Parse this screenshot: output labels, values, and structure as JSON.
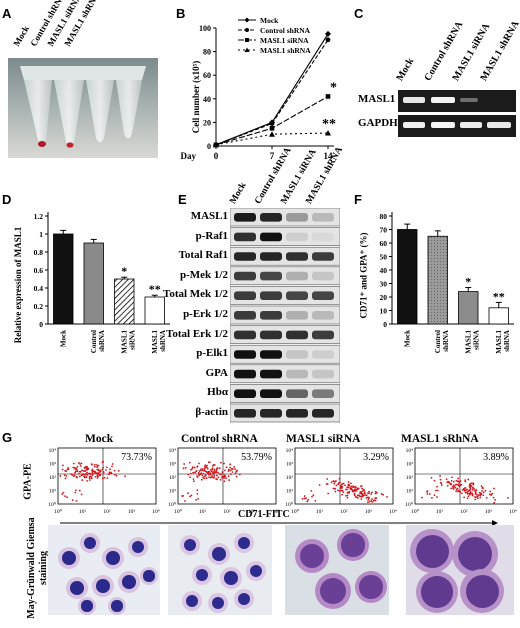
{
  "panels": [
    "A",
    "B",
    "C",
    "D",
    "E",
    "F",
    "G"
  ],
  "panel_a": {
    "lanes": [
      "Mock",
      "Control shRNA",
      "MASL1 siRNA",
      "MASL1 shRNA"
    ]
  },
  "panel_b": {
    "legend": [
      "Mock",
      "Control shRNA",
      "MASL1 siRNA",
      "MASL1 shRNA"
    ],
    "ylabel": "Cell number (x10⁵)",
    "xprefix": "Day",
    "xticks": [
      "0",
      "7",
      "14"
    ],
    "yticks": [
      "0",
      "20",
      "40",
      "60",
      "80",
      "100"
    ],
    "sig_single": "*",
    "sig_double": "**"
  },
  "panel_c": {
    "lanes": [
      "Mock",
      "Control shRNA",
      "MASL1 siRNA",
      "MASL1 shRNA"
    ],
    "rows": [
      "MASL1",
      "GAPDH"
    ]
  },
  "panel_d": {
    "ylabel": "Relative expression of MASL1",
    "yticks": [
      "0",
      "0.2",
      "0.4",
      "0.6",
      "0.8",
      "1",
      "1.2"
    ],
    "categories": [
      "Mock",
      "Control shRNA",
      "MASL1 siRNA",
      "MASL1 shRNA"
    ],
    "sig": [
      "",
      "",
      "*",
      "**"
    ]
  },
  "panel_e": {
    "lanes": [
      "Mock",
      "Control shRNA",
      "MASL1 siRNA",
      "MASL1 shRNA"
    ],
    "rows": [
      "MASL1",
      "p-Raf1",
      "Total Raf1",
      "p-Mek 1/2",
      "Total Mek 1/2",
      "p-Erk 1/2",
      "Total Erk 1/2",
      "p-Elk1",
      "GPA",
      "Hbα",
      "β-actin"
    ]
  },
  "panel_f": {
    "ylabel": "CD71⁺ and GPA⁺ (%)",
    "yticks": [
      "0",
      "10",
      "20",
      "30",
      "40",
      "50",
      "60",
      "70",
      "80"
    ],
    "categories": [
      "Mock",
      "Control shRNA",
      "MASL1 siRNA",
      "MASL1 shRNA"
    ],
    "sig": [
      "",
      "",
      "*",
      "**"
    ]
  },
  "panel_g": {
    "titles": [
      "Mock",
      "Control shRNA",
      "MASL1 siRNA",
      "MASL1 sRhNA"
    ],
    "percents": [
      "73.73%",
      "53.79%",
      "3.29%",
      "3.89%"
    ],
    "ylabel": "GPA-PE",
    "xlabel": "CD71-FITC",
    "ticks": [
      "10⁰",
      "10¹",
      "10²",
      "10³",
      "10⁴"
    ],
    "stain_label": "May-Grünwald Giemsa staining"
  },
  "chart_data": [
    {
      "type": "line",
      "panel": "B",
      "ylabel": "Cell number (x10⁵)",
      "xlabel": "Day",
      "x": [
        0,
        7,
        14
      ],
      "ylim": [
        0,
        100
      ],
      "series": [
        {
          "name": "Mock",
          "values": [
            1,
            20,
            95
          ]
        },
        {
          "name": "Control shRNA",
          "values": [
            1,
            19,
            90
          ]
        },
        {
          "name": "MASL1 siRNA",
          "values": [
            1,
            15,
            42
          ]
        },
        {
          "name": "MASL1 shRNA",
          "values": [
            1,
            10,
            11
          ]
        }
      ],
      "annotations": [
        "*",
        "**"
      ]
    },
    {
      "type": "bar",
      "panel": "D",
      "ylabel": "Relative expression of MASL1",
      "categories": [
        "Mock",
        "Control shRNA",
        "MASL1 siRNA",
        "MASL1 shRNA"
      ],
      "values": [
        1.0,
        0.9,
        0.5,
        0.3
      ],
      "errors": [
        0.04,
        0.04,
        0.02,
        0.02
      ],
      "ylim": [
        0,
        1.2
      ],
      "colors": [
        "#111111",
        "#8a8a8a",
        "hatched",
        "#ffffff"
      ]
    },
    {
      "type": "bar",
      "panel": "F",
      "ylabel": "CD71⁺ and GPA⁺ (%)",
      "categories": [
        "Mock",
        "Control shRNA",
        "MASL1 siRNA",
        "MASL1 shRNA"
      ],
      "values": [
        70,
        65,
        24,
        12
      ],
      "errors": [
        4,
        4,
        3,
        4
      ],
      "ylim": [
        0,
        80
      ],
      "colors": [
        "#111111",
        "#b0b0b0",
        "#8c8c8c",
        "#ffffff"
      ]
    }
  ]
}
